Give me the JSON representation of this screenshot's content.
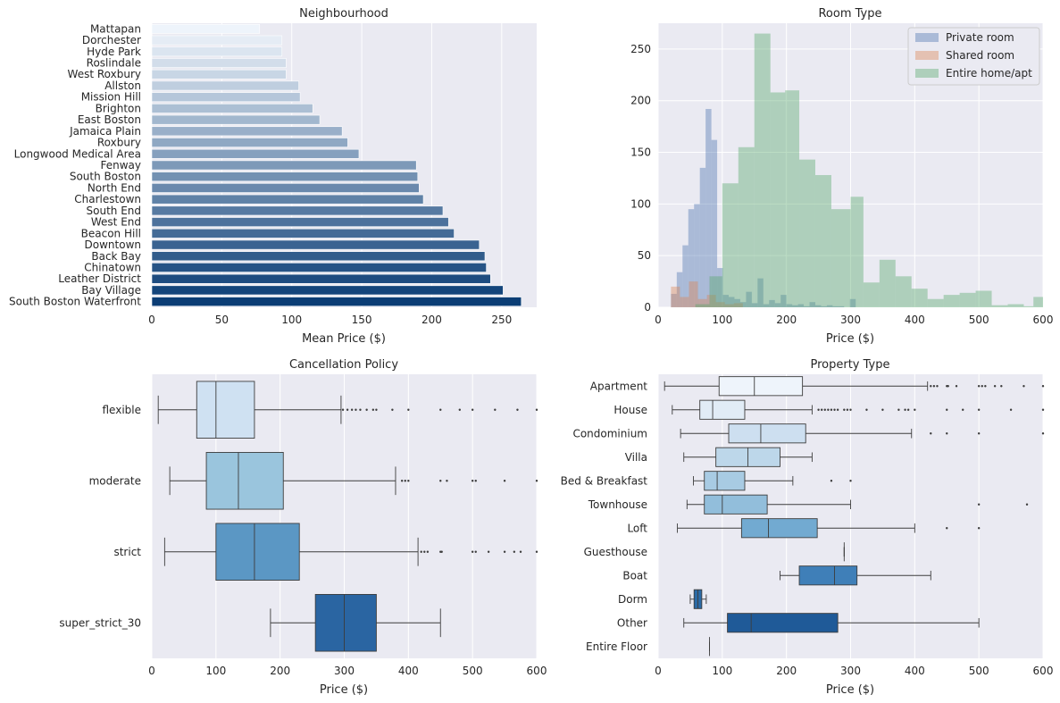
{
  "chart_data": [
    {
      "type": "bar",
      "orientation": "horizontal",
      "title": "Neighbourhood",
      "xlabel": "Mean Price ($)",
      "ylabel": "",
      "xlim": [
        0,
        275
      ],
      "xticks": [
        0,
        50,
        100,
        150,
        200,
        250
      ],
      "categories": [
        "Mattapan",
        "Dorchester",
        "Hyde Park",
        "Roslindale",
        "West Roxbury",
        "Allston",
        "Mission Hill",
        "Brighton",
        "East Boston",
        "Jamaica Plain",
        "Roxbury",
        "Longwood Medical Area",
        "Fenway",
        "South Boston",
        "North End",
        "Charlestown",
        "South End",
        "West End",
        "Beacon Hill",
        "Downtown",
        "Back Bay",
        "Chinatown",
        "Leather District",
        "Bay Village",
        "South Boston Waterfront"
      ],
      "values": [
        77,
        93,
        93,
        96,
        96,
        105,
        106,
        115,
        120,
        136,
        140,
        148,
        189,
        190,
        191,
        194,
        208,
        212,
        216,
        234,
        238,
        239,
        242,
        251,
        264
      ],
      "palette": "Blues",
      "colors": {
        "light": "#eef4fb",
        "dark": "#0b3d75"
      }
    },
    {
      "type": "histogram",
      "title": "Room Type",
      "xlabel": "Price ($)",
      "ylabel": "",
      "xlim": [
        0,
        600
      ],
      "ylim": [
        0,
        275
      ],
      "xticks": [
        0,
        100,
        200,
        300,
        400,
        500,
        600
      ],
      "yticks": [
        0,
        50,
        100,
        150,
        200,
        250
      ],
      "legend_position": "top-right",
      "series": [
        {
          "name": "Private room",
          "color": "#4c72b0",
          "bins": [
            [
              20,
              29,
              13
            ],
            [
              29,
              38,
              34
            ],
            [
              38,
              47,
              60
            ],
            [
              47,
              56,
              95
            ],
            [
              56,
              65,
              100
            ],
            [
              65,
              74,
              135
            ],
            [
              74,
              83,
              192
            ],
            [
              83,
              92,
              162
            ],
            [
              92,
              101,
              38
            ],
            [
              101,
              110,
              12
            ],
            [
              110,
              119,
              10
            ],
            [
              119,
              128,
              8
            ],
            [
              128,
              137,
              5
            ],
            [
              137,
              146,
              15
            ],
            [
              146,
              155,
              4
            ],
            [
              155,
              164,
              28
            ],
            [
              164,
              173,
              3
            ],
            [
              173,
              182,
              7
            ],
            [
              182,
              191,
              4
            ],
            [
              191,
              200,
              12
            ],
            [
              200,
              209,
              3
            ],
            [
              209,
              218,
              2
            ],
            [
              218,
              227,
              3
            ],
            [
              227,
              236,
              1
            ],
            [
              236,
              245,
              5
            ],
            [
              245,
              254,
              2
            ],
            [
              254,
              263,
              1
            ],
            [
              263,
              272,
              2
            ],
            [
              272,
              281,
              1
            ],
            [
              281,
              290,
              1
            ],
            [
              290,
              299,
              0
            ],
            [
              299,
              308,
              8
            ]
          ]
        },
        {
          "name": "Shared room",
          "color": "#dd8452",
          "bins": [
            [
              20,
              34,
              20
            ],
            [
              34,
              48,
              10
            ],
            [
              48,
              62,
              25
            ],
            [
              62,
              76,
              8
            ],
            [
              76,
              90,
              12
            ],
            [
              90,
              104,
              5
            ],
            [
              104,
              118,
              3
            ],
            [
              118,
              132,
              4
            ]
          ]
        },
        {
          "name": "Entire home/apt",
          "color": "#55a868",
          "bins": [
            [
              58,
              80,
              3
            ],
            [
              80,
              100,
              30
            ],
            [
              100,
              125,
              120
            ],
            [
              125,
              150,
              155
            ],
            [
              150,
              175,
              265
            ],
            [
              175,
              198,
              208
            ],
            [
              198,
              220,
              210
            ],
            [
              220,
              245,
              143
            ],
            [
              245,
              270,
              128
            ],
            [
              270,
              300,
              95
            ],
            [
              300,
              320,
              107
            ],
            [
              320,
              345,
              24
            ],
            [
              345,
              370,
              46
            ],
            [
              370,
              395,
              30
            ],
            [
              395,
              420,
              18
            ],
            [
              420,
              445,
              8
            ],
            [
              445,
              470,
              12
            ],
            [
              470,
              495,
              14
            ],
            [
              495,
              520,
              16
            ],
            [
              520,
              545,
              2
            ],
            [
              545,
              570,
              3
            ],
            [
              570,
              585,
              1
            ],
            [
              585,
              600,
              10
            ]
          ]
        }
      ]
    },
    {
      "type": "box",
      "orientation": "horizontal",
      "title": "Cancellation Policy",
      "xlabel": "Price ($)",
      "ylabel": "",
      "xlim": [
        0,
        600
      ],
      "xticks": [
        0,
        100,
        200,
        300,
        400,
        500,
        600
      ],
      "categories": [
        "flexible",
        "moderate",
        "strict",
        "super_strict_30"
      ],
      "boxes": [
        {
          "whislo": 10,
          "q1": 70,
          "med": 100,
          "q3": 160,
          "whishi": 295,
          "color": "#cfe1f2",
          "fliers": [
            298,
            305,
            312,
            318,
            325,
            335,
            345,
            350,
            375,
            400,
            450,
            480,
            500,
            535,
            570,
            600
          ]
        },
        {
          "whislo": 28,
          "q1": 85,
          "med": 135,
          "q3": 205,
          "whishi": 380,
          "color": "#9ac5dd",
          "fliers": [
            390,
            395,
            400,
            450,
            460,
            500,
            505,
            550,
            600
          ]
        },
        {
          "whislo": 20,
          "q1": 100,
          "med": 160,
          "q3": 230,
          "whishi": 415,
          "color": "#5b97c4",
          "fliers": [
            420,
            425,
            430,
            450,
            452,
            500,
            505,
            525,
            550,
            565,
            575,
            600
          ]
        },
        {
          "whislo": 185,
          "q1": 255,
          "med": 300,
          "q3": 350,
          "whishi": 450,
          "color": "#2a65a2",
          "fliers": []
        }
      ]
    },
    {
      "type": "box",
      "orientation": "horizontal",
      "title": "Property Type",
      "xlabel": "Price ($)",
      "ylabel": "",
      "xlim": [
        0,
        600
      ],
      "xticks": [
        0,
        100,
        200,
        300,
        400,
        500,
        600
      ],
      "categories": [
        "Apartment",
        "House",
        "Condominium",
        "Villa",
        "Bed & Breakfast",
        "Townhouse",
        "Loft",
        "Guesthouse",
        "Boat",
        "Dorm",
        "Other",
        "Entire Floor"
      ],
      "boxes": [
        {
          "whislo": 10,
          "q1": 95,
          "med": 150,
          "q3": 225,
          "whishi": 420,
          "color": "#eef4fb",
          "fliers": [
            425,
            430,
            435,
            450,
            452,
            465,
            500,
            505,
            510,
            525,
            535,
            570,
            600
          ]
        },
        {
          "whislo": 22,
          "q1": 65,
          "med": 85,
          "q3": 135,
          "whishi": 240,
          "color": "#e1ecf6",
          "fliers": [
            250,
            255,
            260,
            265,
            270,
            275,
            280,
            290,
            295,
            300,
            325,
            350,
            375,
            385,
            390,
            400,
            450,
            475,
            500,
            550,
            600
          ]
        },
        {
          "whislo": 35,
          "q1": 110,
          "med": 160,
          "q3": 230,
          "whishi": 395,
          "color": "#cddff0",
          "fliers": [
            425,
            450,
            500,
            600
          ]
        },
        {
          "whislo": 40,
          "q1": 90,
          "med": 140,
          "q3": 190,
          "whishi": 240,
          "color": "#bdd7ea",
          "fliers": []
        },
        {
          "whislo": 55,
          "q1": 72,
          "med": 92,
          "q3": 135,
          "whishi": 210,
          "color": "#a8cbe3",
          "fliers": [
            270,
            300
          ]
        },
        {
          "whislo": 45,
          "q1": 72,
          "med": 100,
          "q3": 170,
          "whishi": 300,
          "color": "#92bedb",
          "fliers": [
            500,
            575
          ]
        },
        {
          "whislo": 30,
          "q1": 130,
          "med": 172,
          "q3": 248,
          "whishi": 400,
          "color": "#72aad1",
          "fliers": [
            450,
            500
          ]
        },
        {
          "whislo": 290,
          "q1": 290,
          "med": 290,
          "q3": 290,
          "whishi": 290,
          "color": "#5796c5",
          "fliers": []
        },
        {
          "whislo": 190,
          "q1": 220,
          "med": 275,
          "q3": 310,
          "whishi": 425,
          "color": "#3f7fb8",
          "fliers": []
        },
        {
          "whislo": 50,
          "q1": 56,
          "med": 62,
          "q3": 68,
          "whishi": 75,
          "color": "#2b6aa6",
          "fliers": []
        },
        {
          "whislo": 40,
          "q1": 108,
          "med": 145,
          "q3": 280,
          "whishi": 500,
          "color": "#1f5a98",
          "fliers": []
        },
        {
          "whislo": 80,
          "q1": 80,
          "med": 80,
          "q3": 80,
          "whishi": 80,
          "color": "#154b87",
          "fliers": []
        }
      ]
    }
  ]
}
